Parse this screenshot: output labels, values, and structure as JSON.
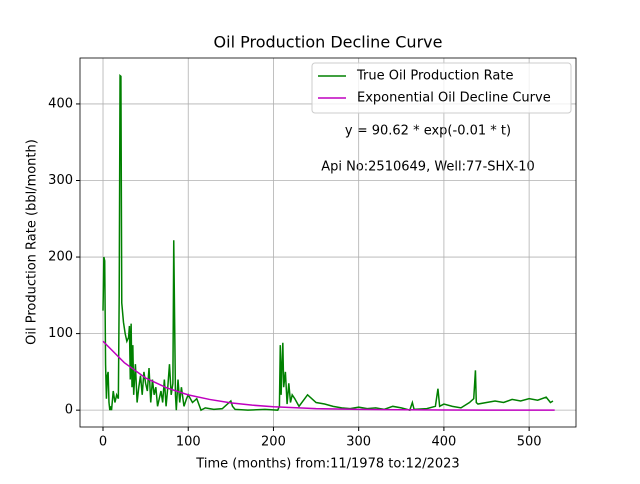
{
  "chart_data": {
    "type": "line",
    "title": "Oil Production Decline Curve",
    "x_label": "Time (months) from:11/1978 to:12/2023",
    "y_label": "Oil Production Rate (bbl/month)",
    "annotations": [
      "y = 90.62 * exp(-0.01 * t)",
      "Api No:2510649, Well:77-SHX-10"
    ],
    "xlim": [
      -27,
      555
    ],
    "ylim": [
      -22,
      460
    ],
    "xticks": [
      0,
      100,
      200,
      300,
      400,
      500
    ],
    "yticks": [
      0,
      100,
      200,
      300,
      400
    ],
    "grid": true,
    "legend": "upper right",
    "series": [
      {
        "name": "True Oil Production Rate",
        "color": "#008000",
        "x": [
          0,
          1,
          2,
          3,
          4,
          5,
          6,
          7,
          8,
          9,
          10,
          12,
          14,
          16,
          18,
          19,
          20,
          21,
          22,
          24,
          26,
          28,
          30,
          31,
          32,
          33,
          34,
          35,
          36,
          38,
          40,
          42,
          44,
          46,
          48,
          50,
          52,
          54,
          56,
          58,
          60,
          62,
          64,
          66,
          68,
          70,
          72,
          74,
          76,
          78,
          80,
          82,
          83,
          84,
          85,
          86,
          88,
          90,
          92,
          95,
          98,
          100,
          105,
          110,
          115,
          120,
          130,
          140,
          150,
          152,
          155,
          170,
          190,
          205,
          207,
          208,
          209,
          210,
          211,
          212,
          214,
          216,
          218,
          220,
          222,
          225,
          230,
          240,
          250,
          260,
          270,
          280,
          290,
          300,
          310,
          320,
          330,
          340,
          350,
          360,
          363,
          365,
          380,
          390,
          393,
          395,
          400,
          410,
          420,
          430,
          435,
          437,
          438,
          440,
          450,
          460,
          470,
          480,
          490,
          500,
          510,
          520,
          525,
          528
        ],
        "values": [
          130,
          200,
          195,
          60,
          15,
          45,
          50,
          10,
          0,
          5,
          0,
          25,
          10,
          20,
          15,
          150,
          437,
          436,
          140,
          115,
          100,
          90,
          95,
          110,
          40,
          113,
          30,
          85,
          20,
          60,
          10,
          30,
          45,
          20,
          50,
          35,
          25,
          55,
          10,
          40,
          20,
          30,
          5,
          15,
          25,
          10,
          40,
          5,
          30,
          60,
          20,
          35,
          222,
          120,
          20,
          0,
          40,
          10,
          30,
          5,
          15,
          20,
          10,
          15,
          0,
          3,
          1,
          2,
          12,
          5,
          1,
          0,
          1,
          0,
          5,
          85,
          20,
          60,
          88,
          30,
          50,
          8,
          35,
          10,
          20,
          15,
          5,
          20,
          10,
          8,
          5,
          3,
          2,
          4,
          2,
          3,
          1,
          5,
          3,
          0,
          10,
          1,
          2,
          5,
          28,
          5,
          8,
          5,
          3,
          10,
          15,
          52,
          10,
          8,
          10,
          12,
          10,
          14,
          12,
          15,
          13,
          17,
          10,
          12
        ]
      },
      {
        "name": "Exponential Oil Decline Curve",
        "color": "#bf00bf",
        "x": [
          0,
          25,
          50,
          75,
          100,
          125,
          150,
          175,
          200,
          250,
          300,
          350,
          400,
          450,
          500,
          530
        ],
        "values": [
          90,
          62,
          42,
          29,
          20,
          14,
          9.5,
          6.5,
          4.5,
          2,
          1,
          0.5,
          0.2,
          0.1,
          0,
          0
        ]
      }
    ]
  }
}
